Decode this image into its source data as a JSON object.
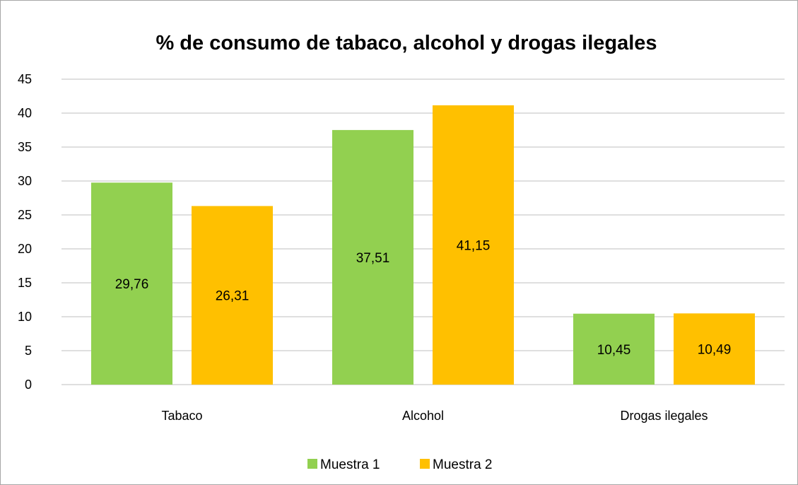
{
  "chart_data": {
    "type": "bar",
    "title": "% de consumo de tabaco, alcohol y drogas ilegales",
    "xlabel": "",
    "ylabel": "",
    "categories": [
      "Tabaco",
      "Alcohol",
      "Drogas ilegales"
    ],
    "series": [
      {
        "name": "Muestra 1",
        "color": "#92d050",
        "values": [
          29.76,
          37.51,
          10.45
        ],
        "labels": [
          "29,76",
          "37,51",
          "10,45"
        ]
      },
      {
        "name": "Muestra 2",
        "color": "#ffc000",
        "values": [
          26.31,
          41.15,
          10.49
        ],
        "labels": [
          "26,31",
          "41,15",
          "10,49"
        ]
      }
    ],
    "ylim": [
      0,
      45
    ],
    "yticks": [
      0,
      5,
      10,
      15,
      20,
      25,
      30,
      35,
      40,
      45
    ],
    "grid": true,
    "gridline_color": "#bfbfbf",
    "legend_position": "bottom"
  }
}
